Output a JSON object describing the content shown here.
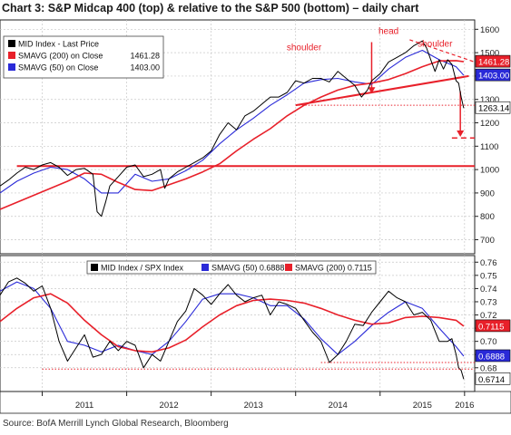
{
  "title": "Chart 3: S&P Midcap 400 (top) & relative to the S&P 500 (bottom) – daily chart",
  "source": "Source: BofA Merrill Lynch Global Research, Bloomberg",
  "chart_data": [
    {
      "type": "line",
      "name": "top",
      "x_ticks": [
        "2011",
        "2012",
        "2013",
        "2014",
        "2015",
        "2016"
      ],
      "ylim": [
        640,
        1640
      ],
      "y_ticks": [
        700,
        800,
        900,
        1000,
        1100,
        1200,
        1300,
        1400,
        1500,
        1600
      ],
      "grid": true,
      "legend_position": "top-left",
      "legend": [
        {
          "label": "MID Index - Last Price",
          "value": "",
          "color": "#000000"
        },
        {
          "label": "SMAVG (200) on Close",
          "value": "1461.28",
          "color": "#e8202a"
        },
        {
          "label": "SMAVG (50) on Close",
          "value": "1403.00",
          "color": "#2a2ad8"
        }
      ],
      "value_badges": [
        {
          "label": "1461.28",
          "value": 1461.28,
          "bg": "#e8202a",
          "fg": "#ffffff"
        },
        {
          "label": "1403.00",
          "value": 1403.0,
          "bg": "#2a2ad8",
          "fg": "#ffffff"
        },
        {
          "label": "1263.14",
          "value": 1263.14,
          "bg": "#ffffff",
          "fg": "#000000"
        }
      ],
      "series": [
        {
          "name": "MID Index - Last Price",
          "color": "#000000",
          "x": [
            2010.5,
            2010.6,
            2010.7,
            2010.8,
            2010.9,
            2011.0,
            2011.1,
            2011.2,
            2011.3,
            2011.4,
            2011.5,
            2011.6,
            2011.65,
            2011.7,
            2011.75,
            2011.8,
            2011.9,
            2012.0,
            2012.1,
            2012.2,
            2012.3,
            2012.4,
            2012.45,
            2012.5,
            2012.6,
            2012.7,
            2012.8,
            2012.9,
            2013.0,
            2013.1,
            2013.2,
            2013.3,
            2013.4,
            2013.5,
            2013.6,
            2013.7,
            2013.8,
            2013.9,
            2014.0,
            2014.1,
            2014.2,
            2014.3,
            2014.4,
            2014.5,
            2014.6,
            2014.7,
            2014.78,
            2014.85,
            2014.9,
            2015.0,
            2015.1,
            2015.2,
            2015.3,
            2015.4,
            2015.5,
            2015.55,
            2015.6,
            2015.65,
            2015.7,
            2015.75,
            2015.8,
            2015.85,
            2015.9,
            2015.93,
            2015.96,
            2015.99
          ],
          "y": [
            930,
            955,
            985,
            1010,
            1000,
            1020,
            1030,
            1010,
            975,
            1000,
            1005,
            980,
            820,
            800,
            860,
            930,
            970,
            1010,
            1020,
            970,
            980,
            1000,
            920,
            960,
            990,
            1010,
            1030,
            1050,
            1080,
            1150,
            1200,
            1170,
            1230,
            1250,
            1280,
            1310,
            1310,
            1330,
            1380,
            1370,
            1390,
            1390,
            1375,
            1420,
            1390,
            1360,
            1310,
            1340,
            1380,
            1410,
            1460,
            1480,
            1500,
            1530,
            1550,
            1520,
            1470,
            1420,
            1470,
            1430,
            1470,
            1450,
            1380,
            1370,
            1310,
            1263
          ]
        },
        {
          "name": "SMAVG (200) on Close",
          "color": "#e8202a",
          "x": [
            2010.5,
            2010.7,
            2010.9,
            2011.1,
            2011.3,
            2011.5,
            2011.7,
            2011.9,
            2012.1,
            2012.3,
            2012.5,
            2012.7,
            2012.9,
            2013.1,
            2013.3,
            2013.5,
            2013.7,
            2013.9,
            2014.1,
            2014.3,
            2014.5,
            2014.7,
            2014.9,
            2015.1,
            2015.3,
            2015.5,
            2015.7,
            2015.9,
            2015.99
          ],
          "y": [
            830,
            860,
            890,
            920,
            950,
            985,
            980,
            945,
            915,
            910,
            935,
            960,
            990,
            1025,
            1080,
            1130,
            1175,
            1230,
            1275,
            1310,
            1340,
            1360,
            1370,
            1385,
            1410,
            1440,
            1465,
            1466,
            1461.28
          ]
        },
        {
          "name": "SMAVG (50) on Close",
          "color": "#2a2ad8",
          "x": [
            2010.5,
            2010.7,
            2010.9,
            2011.1,
            2011.3,
            2011.5,
            2011.7,
            2011.9,
            2012.1,
            2012.3,
            2012.5,
            2012.7,
            2012.9,
            2013.1,
            2013.3,
            2013.5,
            2013.7,
            2013.9,
            2014.1,
            2014.3,
            2014.5,
            2014.7,
            2014.9,
            2015.1,
            2015.3,
            2015.5,
            2015.7,
            2015.9,
            2015.99
          ],
          "y": [
            900,
            950,
            985,
            1010,
            1000,
            960,
            900,
            900,
            980,
            950,
            960,
            995,
            1040,
            1110,
            1170,
            1220,
            1275,
            1320,
            1370,
            1385,
            1390,
            1375,
            1365,
            1430,
            1480,
            1510,
            1470,
            1440,
            1403.0
          ]
        }
      ],
      "annotations": [
        {
          "text": "head",
          "color": "#e8202a"
        },
        {
          "text": "shoulder",
          "color": "#e8202a"
        },
        {
          "text": "shoulder",
          "color": "#e8202a"
        }
      ],
      "support_level": 1015,
      "neckline": {
        "from": [
          2014.0,
          1275
        ],
        "to": [
          2016.05,
          1400
        ]
      },
      "measured_target": 1135
    },
    {
      "type": "line",
      "name": "bottom",
      "x_ticks": [
        "2011",
        "2012",
        "2013",
        "2014",
        "2015",
        "2016"
      ],
      "ylim": [
        0.662,
        0.765
      ],
      "y_ticks": [
        0.68,
        0.69,
        0.7,
        0.71,
        0.72,
        0.73,
        0.74,
        0.75,
        0.76
      ],
      "grid": true,
      "legend_position": "top",
      "legend": [
        {
          "label": "MID Index / SPX Index",
          "value": "",
          "color": "#000000"
        },
        {
          "label": "SMAVG (50)",
          "value": "0.6888",
          "color": "#2a2ad8"
        },
        {
          "label": "SMAVG (200)",
          "value": "0.7115",
          "color": "#e8202a"
        }
      ],
      "value_badges": [
        {
          "label": "0.7115",
          "value": 0.7115,
          "bg": "#e8202a",
          "fg": "#ffffff"
        },
        {
          "label": "0.6888",
          "value": 0.6888,
          "bg": "#2a2ad8",
          "fg": "#ffffff"
        },
        {
          "label": "0.6714",
          "value": 0.6714,
          "bg": "#ffffff",
          "fg": "#000000"
        }
      ],
      "series": [
        {
          "name": "MID Index / SPX Index",
          "color": "#000000",
          "x": [
            2010.5,
            2010.6,
            2010.7,
            2010.8,
            2010.9,
            2011.0,
            2011.1,
            2011.2,
            2011.3,
            2011.4,
            2011.5,
            2011.6,
            2011.7,
            2011.8,
            2011.9,
            2012.0,
            2012.1,
            2012.2,
            2012.3,
            2012.4,
            2012.5,
            2012.6,
            2012.7,
            2012.8,
            2012.9,
            2013.0,
            2013.1,
            2013.2,
            2013.3,
            2013.4,
            2013.5,
            2013.6,
            2013.7,
            2013.8,
            2013.9,
            2014.0,
            2014.1,
            2014.2,
            2014.3,
            2014.4,
            2014.5,
            2014.6,
            2014.7,
            2014.8,
            2014.9,
            2015.0,
            2015.1,
            2015.2,
            2015.3,
            2015.4,
            2015.5,
            2015.6,
            2015.7,
            2015.8,
            2015.85,
            2015.9,
            2015.93,
            2015.96,
            2015.99
          ],
          "y": [
            0.735,
            0.745,
            0.748,
            0.744,
            0.738,
            0.742,
            0.725,
            0.7,
            0.685,
            0.695,
            0.705,
            0.688,
            0.69,
            0.7,
            0.693,
            0.7,
            0.697,
            0.68,
            0.69,
            0.685,
            0.7,
            0.715,
            0.723,
            0.74,
            0.735,
            0.728,
            0.736,
            0.743,
            0.735,
            0.73,
            0.733,
            0.735,
            0.72,
            0.73,
            0.728,
            0.725,
            0.716,
            0.707,
            0.7,
            0.684,
            0.69,
            0.7,
            0.713,
            0.712,
            0.722,
            0.73,
            0.738,
            0.733,
            0.73,
            0.72,
            0.722,
            0.716,
            0.7,
            0.7,
            0.702,
            0.69,
            0.68,
            0.678,
            0.6714
          ]
        },
        {
          "name": "SMAVG (50)",
          "color": "#2a2ad8",
          "x": [
            2010.5,
            2010.7,
            2010.9,
            2011.1,
            2011.3,
            2011.5,
            2011.7,
            2011.9,
            2012.1,
            2012.3,
            2012.5,
            2012.7,
            2012.9,
            2013.1,
            2013.3,
            2013.5,
            2013.7,
            2013.9,
            2014.1,
            2014.3,
            2014.5,
            2014.7,
            2014.9,
            2015.1,
            2015.3,
            2015.5,
            2015.7,
            2015.9,
            2015.99
          ],
          "y": [
            0.738,
            0.745,
            0.74,
            0.725,
            0.7,
            0.697,
            0.692,
            0.697,
            0.693,
            0.69,
            0.7,
            0.715,
            0.732,
            0.736,
            0.736,
            0.733,
            0.727,
            0.727,
            0.717,
            0.702,
            0.69,
            0.7,
            0.712,
            0.722,
            0.73,
            0.725,
            0.71,
            0.696,
            0.6888
          ]
        },
        {
          "name": "SMAVG (200)",
          "color": "#e8202a",
          "x": [
            2010.5,
            2010.7,
            2010.9,
            2011.1,
            2011.3,
            2011.5,
            2011.7,
            2011.9,
            2012.1,
            2012.3,
            2012.5,
            2012.7,
            2012.9,
            2013.1,
            2013.3,
            2013.5,
            2013.7,
            2013.9,
            2014.1,
            2014.3,
            2014.5,
            2014.7,
            2014.9,
            2015.1,
            2015.3,
            2015.5,
            2015.7,
            2015.9,
            2015.99
          ],
          "y": [
            0.715,
            0.725,
            0.733,
            0.736,
            0.729,
            0.716,
            0.705,
            0.696,
            0.693,
            0.692,
            0.695,
            0.701,
            0.711,
            0.72,
            0.727,
            0.731,
            0.732,
            0.731,
            0.729,
            0.725,
            0.72,
            0.716,
            0.713,
            0.714,
            0.718,
            0.719,
            0.718,
            0.716,
            0.7115
          ]
        }
      ],
      "support_level": 0.679
    }
  ]
}
